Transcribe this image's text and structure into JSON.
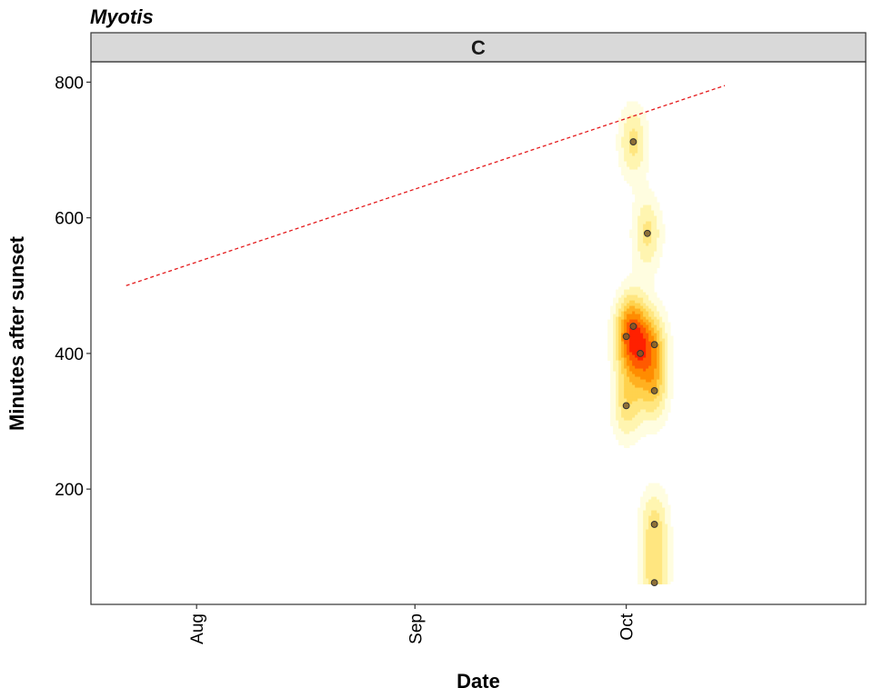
{
  "chart_data": {
    "type": "scatter",
    "title": "Myotis",
    "facet_label": "C",
    "xlabel": "Date",
    "ylabel": "Minutes after sunset",
    "x_ticks": [
      "Aug",
      "Sep",
      "Oct"
    ],
    "x_tick_dates": [
      "2000-08-01",
      "2000-09-01",
      "2000-10-01"
    ],
    "xlim": [
      "2000-07-17",
      "2000-11-04"
    ],
    "ylim": [
      30,
      830
    ],
    "y_ticks": [
      200,
      400,
      600,
      800
    ],
    "grid": false,
    "points": [
      {
        "x": "2000-10-01",
        "y": 425
      },
      {
        "x": "2000-10-01",
        "y": 323
      },
      {
        "x": "2000-10-02",
        "y": 712
      },
      {
        "x": "2000-10-02",
        "y": 440
      },
      {
        "x": "2000-10-03",
        "y": 400
      },
      {
        "x": "2000-10-04",
        "y": 577
      },
      {
        "x": "2000-10-05",
        "y": 413
      },
      {
        "x": "2000-10-05",
        "y": 345
      },
      {
        "x": "2000-10-05",
        "y": 148
      },
      {
        "x": "2000-10-05",
        "y": 62
      }
    ],
    "reference_line": {
      "style": "dashed",
      "color": "#e41a1c",
      "x": [
        "2000-07-22",
        "2000-10-15"
      ],
      "y": [
        500,
        795
      ]
    },
    "density_fill": {
      "colors": [
        "#fffde0",
        "#fff5b0",
        "#ffe680",
        "#ffd24d",
        "#ffb020",
        "#ff8c00",
        "#ff5a00",
        "#ff2000"
      ]
    },
    "colors": {
      "point_fill": "#7a5a2a",
      "point_stroke": "#333333",
      "strip_fill": "#d9d9d9",
      "panel_border": "#333333"
    }
  }
}
